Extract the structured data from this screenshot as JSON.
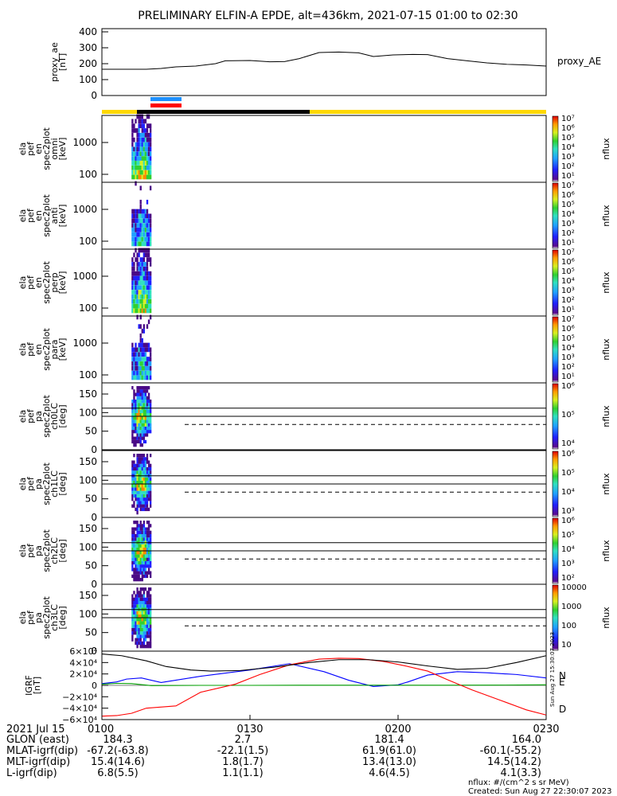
{
  "title": "PRELIMINARY ELFIN-A EPDE, alt=436km, 2021-07-15 01:00 to 02:30",
  "proxy_ae": {
    "ylabel_lines": [
      "proxy_ae",
      "[nT]"
    ],
    "legend": "proxy_AE",
    "yticks": [
      "400",
      "300",
      "200",
      "100",
      "0"
    ],
    "yrange": [
      0,
      420
    ],
    "color": "#000000"
  },
  "spec_panels": [
    {
      "ylabel_lines": [
        "ela",
        "pef",
        "en",
        "spec2plot",
        "omni",
        "[keV]"
      ],
      "yticks": [
        "1000",
        "100"
      ],
      "cbar_ticks": [
        "10⁷",
        "10⁶",
        "10⁵",
        "10⁴",
        "10³",
        "10²",
        "10¹"
      ],
      "cbar_label": "nflux"
    },
    {
      "ylabel_lines": [
        "ela",
        "pef",
        "en",
        "spec2plot",
        "anti",
        "[keV]"
      ],
      "yticks": [
        "1000",
        "100"
      ],
      "cbar_ticks": [
        "10⁷",
        "10⁶",
        "10⁵",
        "10⁴",
        "10³",
        "10²",
        "10¹"
      ],
      "cbar_label": "nflux"
    },
    {
      "ylabel_lines": [
        "ela",
        "pef",
        "en",
        "spec2plot",
        "perp",
        "[keV]"
      ],
      "yticks": [
        "1000",
        "100"
      ],
      "cbar_ticks": [
        "10⁷",
        "10⁶",
        "10⁵",
        "10⁴",
        "10³",
        "10²",
        "10¹"
      ],
      "cbar_label": "nflux"
    },
    {
      "ylabel_lines": [
        "ela",
        "pef",
        "en",
        "spec2plot",
        "para",
        "[keV]"
      ],
      "yticks": [
        "1000",
        "100"
      ],
      "cbar_ticks": [
        "10⁷",
        "10⁶",
        "10⁵",
        "10⁴",
        "10³",
        "10²",
        "10¹"
      ],
      "cbar_label": "nflux"
    },
    {
      "ylabel_lines": [
        "ela",
        "pef",
        "pa",
        "spec2plot",
        "ch0LC",
        "[deg]"
      ],
      "yticks": [
        "150",
        "100",
        "50",
        "0"
      ],
      "cbar_ticks": [
        "10⁶",
        "10⁵",
        "10⁴"
      ],
      "cbar_label": "nflux"
    },
    {
      "ylabel_lines": [
        "ela",
        "pef",
        "pa",
        "spec2plot",
        "ch1LC",
        "[deg]"
      ],
      "yticks": [
        "150",
        "100",
        "50",
        "0"
      ],
      "cbar_ticks": [
        "10⁶",
        "10⁵",
        "10⁴",
        "10³"
      ],
      "cbar_label": "nflux"
    },
    {
      "ylabel_lines": [
        "ela",
        "pef",
        "pa",
        "spec2plot",
        "ch2LC",
        "[deg]"
      ],
      "yticks": [
        "150",
        "100",
        "50",
        "0"
      ],
      "cbar_ticks": [
        "10⁶",
        "10⁵",
        "10⁴",
        "10³",
        "10²"
      ],
      "cbar_label": "nflux"
    },
    {
      "ylabel_lines": [
        "ela",
        "pef",
        "pa",
        "spec2plot",
        "ch3LC",
        "[deg]"
      ],
      "yticks": [
        "150",
        "100",
        "50",
        "0"
      ],
      "cbar_ticks": [
        "10000",
        "1000",
        "100",
        "10"
      ],
      "cbar_label": "nflux"
    }
  ],
  "igrf": {
    "ylabel_lines": [
      "IGRF",
      "[nT]"
    ],
    "yticks": [
      "6×10⁴",
      "4×10⁴",
      "2×10⁴",
      "0",
      "−2×10⁴",
      "−4×10⁴",
      "−6×10⁴"
    ],
    "legend": [
      {
        "name": "N",
        "color": "#0000ff"
      },
      {
        "name": "E",
        "color": "#00c000"
      },
      {
        "name": "D",
        "color": "#ff0000"
      }
    ],
    "stamp": "Sun Aug 27 15:30:07 2023"
  },
  "xaxis": {
    "date": "2021 Jul 15",
    "ticks": [
      "0100",
      "0130",
      "0200",
      "0230"
    ]
  },
  "ephemeris": [
    {
      "label": "GLON (east)",
      "values": [
        "184.3",
        "2.7",
        "181.4",
        "164.0"
      ]
    },
    {
      "label": "MLAT-igrf(dip)",
      "values": [
        "-67.2(-63.8)",
        "-22.1(1.5)",
        "61.9(61.0)",
        "-60.1(-55.2)"
      ]
    },
    {
      "label": "MLT-igrf(dip)",
      "values": [
        "15.4(14.6)",
        "1.8(1.7)",
        "13.4(13.0)",
        "14.5(14.2)"
      ]
    },
    {
      "label": "L-igrf(dip)",
      "values": [
        "6.8(5.5)",
        "1.1(1.1)",
        "4.6(4.5)",
        "4.1(3.3)"
      ]
    }
  ],
  "footer": {
    "units": "nflux: #/(cm^2 s sr MeV)",
    "created": "Created: Sun Aug 27 22:30:07 2023"
  },
  "bar_colors": {
    "blue": "#1e90ff",
    "red": "#ff0000",
    "yellow": "#ffd800",
    "black": "#000000"
  },
  "chart_data": {
    "type": "line",
    "x_unit": "UT minutes after 01:00",
    "xlim": [
      0,
      90
    ],
    "series": [
      {
        "name": "proxy_AE",
        "unit": "nT",
        "x": [
          0,
          5,
          9,
          12,
          15,
          19,
          23,
          25,
          30,
          34,
          37,
          40,
          44,
          48,
          52,
          55,
          59,
          63,
          66,
          70,
          74,
          78,
          82,
          86,
          90
        ],
        "y": [
          165,
          165,
          165,
          170,
          180,
          185,
          200,
          218,
          220,
          212,
          213,
          232,
          270,
          273,
          268,
          245,
          255,
          258,
          257,
          232,
          218,
          205,
          196,
          192,
          185
        ]
      },
      {
        "name": "N",
        "unit": "nT",
        "x": [
          0,
          3,
          5,
          8,
          12,
          20,
          30,
          38,
          45,
          50,
          55,
          60,
          62,
          66,
          72,
          78,
          84,
          90
        ],
        "y": [
          3000,
          6000,
          11000,
          13000,
          5000,
          16000,
          27000,
          38000,
          24000,
          9000,
          -2000,
          1000,
          6000,
          18000,
          24000,
          22000,
          19000,
          13000
        ]
      },
      {
        "name": "E",
        "unit": "nT",
        "x": [
          0,
          3,
          6,
          10,
          20,
          30,
          40,
          50,
          60,
          70,
          80,
          90
        ],
        "y": [
          2000,
          3500,
          3000,
          -500,
          0,
          0,
          200,
          300,
          300,
          200,
          400,
          1000
        ]
      },
      {
        "name": "D",
        "unit": "nT",
        "x": [
          0,
          3,
          6,
          9,
          15,
          20,
          27,
          32,
          38,
          44,
          48,
          52,
          57,
          61,
          66,
          70,
          75,
          81,
          86,
          90
        ],
        "y": [
          -54000,
          -53000,
          -49000,
          -40000,
          -36000,
          -12000,
          2000,
          19000,
          36000,
          46000,
          47500,
          47000,
          42000,
          35000,
          25000,
          10000,
          -8000,
          -27000,
          -43000,
          -52000
        ]
      },
      {
        "name": "IGRF total",
        "unit": "nT",
        "x": [
          0,
          4,
          9,
          13,
          18,
          22,
          28,
          35,
          42,
          48,
          54,
          60,
          66,
          72,
          78,
          84,
          90
        ],
        "y": [
          55000,
          52000,
          43000,
          33000,
          27000,
          25000,
          26000,
          32000,
          40000,
          45000,
          45000,
          41000,
          34000,
          28000,
          30000,
          40000,
          52000
        ]
      }
    ],
    "shown_ranges": {
      "science_colors": [
        {
          "color": "blue",
          "from_min": 7,
          "to_min": 11
        },
        {
          "color": "red",
          "from_min": 7,
          "to_min": 11
        }
      ],
      "data_flux_ut_minutes": [
        6,
        10
      ]
    }
  }
}
